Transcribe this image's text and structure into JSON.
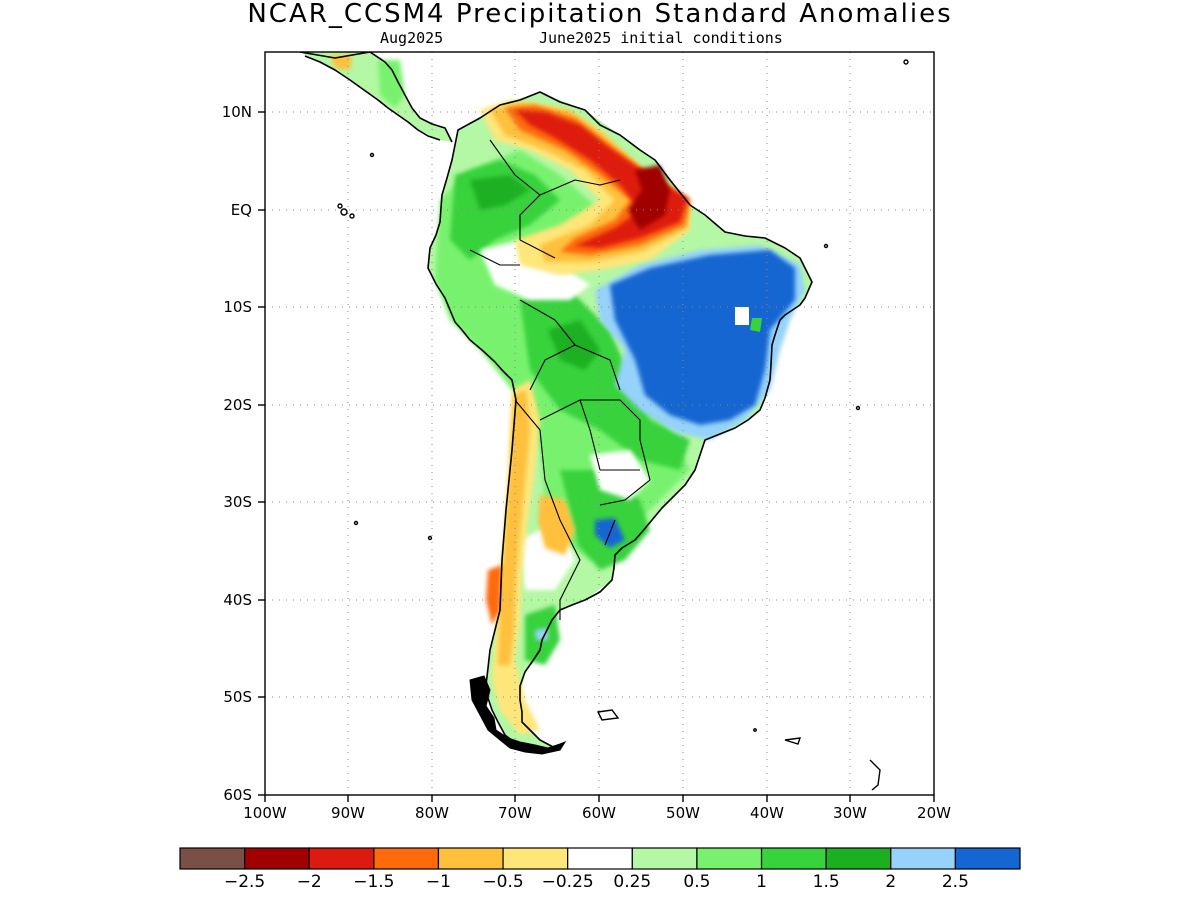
{
  "title": "NCAR_CCSM4 Precipitation Standard Anomalies",
  "subtitle_left": "Aug2025",
  "subtitle_right": "June2025 initial conditions",
  "lat_labels": [
    "10N",
    "EQ",
    "10S",
    "20S",
    "30S",
    "40S",
    "50S",
    "60S"
  ],
  "lon_labels": [
    "100W",
    "90W",
    "80W",
    "70W",
    "60W",
    "50W",
    "40W",
    "30W",
    "20W"
  ],
  "colorbar": {
    "colors": [
      "#7a4f45",
      "#a00000",
      "#dd1a10",
      "#ff6a0a",
      "#ffc03c",
      "#ffe67a",
      "#ffffff",
      "#b4f7a4",
      "#78f26e",
      "#37d23c",
      "#1cb021",
      "#96d2fa",
      "#1466d2"
    ],
    "labels": [
      "-2.5",
      "-2",
      "-1.5",
      "-1",
      "-0.5",
      "-0.25",
      "0.25",
      "0.5",
      "1",
      "1.5",
      "2",
      "2.5"
    ]
  },
  "colors": {
    "coast": "#000000",
    "grid": "#888888"
  }
}
